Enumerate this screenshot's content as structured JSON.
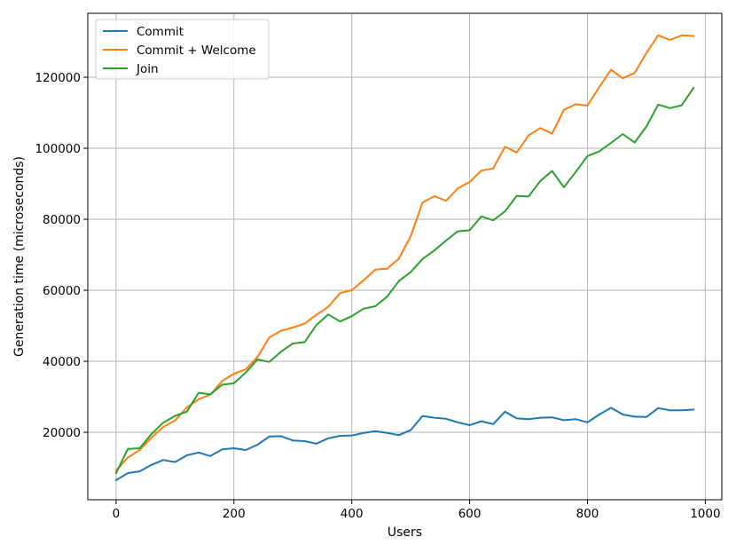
{
  "chart_data": {
    "type": "line",
    "xlabel": "Users",
    "ylabel": "Generation time (microseconds)",
    "xlim": [
      -48,
      1028
    ],
    "ylim": [
      1000,
      138000
    ],
    "xticks": [
      0,
      200,
      400,
      600,
      800,
      1000
    ],
    "yticks": [
      20000,
      40000,
      60000,
      80000,
      100000,
      120000
    ],
    "grid": true,
    "legend_position": "top-left",
    "x": [
      0,
      20,
      40,
      60,
      80,
      100,
      120,
      140,
      160,
      180,
      200,
      220,
      240,
      260,
      280,
      300,
      320,
      340,
      360,
      380,
      400,
      420,
      440,
      460,
      480,
      500,
      520,
      540,
      560,
      580,
      600,
      620,
      640,
      660,
      680,
      700,
      720,
      740,
      760,
      780,
      800,
      820,
      840,
      860,
      880,
      900,
      920,
      940,
      960,
      980
    ],
    "series": [
      {
        "name": "Commit",
        "color": "#1f77b4",
        "values": [
          6500,
          8500,
          9000,
          10800,
          12200,
          11600,
          13500,
          14300,
          13300,
          15200,
          15500,
          15000,
          16500,
          18800,
          18900,
          17700,
          17500,
          16800,
          18300,
          19000,
          19100,
          19800,
          20300,
          19800,
          19200,
          20600,
          24600,
          24100,
          23800,
          22800,
          22000,
          23100,
          22300,
          25800,
          23900,
          23700,
          24100,
          24200,
          23400,
          23700,
          22800,
          25000,
          26900,
          25000,
          24400,
          24300,
          26800,
          26200,
          26200,
          26400
        ]
      },
      {
        "name": "Commit + Welcome",
        "color": "#ff7f0e",
        "values": [
          9200,
          12900,
          15000,
          18500,
          21500,
          23300,
          27000,
          29300,
          30600,
          34400,
          36500,
          37700,
          41200,
          46700,
          48600,
          49500,
          50600,
          53100,
          55300,
          59200,
          60000,
          62800,
          65800,
          66100,
          68900,
          75200,
          84700,
          86500,
          85200,
          88700,
          90500,
          93700,
          94300,
          100400,
          98800,
          103600,
          105700,
          104100,
          110800,
          112400,
          112000,
          117200,
          122100,
          119700,
          121200,
          126800,
          131800,
          130500,
          131800,
          131600
        ]
      },
      {
        "name": "Join",
        "color": "#2ca02c",
        "values": [
          8500,
          15300,
          15500,
          19500,
          22700,
          24600,
          25800,
          31100,
          30700,
          33400,
          33800,
          36800,
          40500,
          39800,
          42700,
          45000,
          45400,
          50200,
          53200,
          51200,
          52700,
          54800,
          55500,
          58200,
          62600,
          65100,
          68800,
          71200,
          74000,
          76600,
          76900,
          80800,
          79700,
          82200,
          86600,
          86400,
          90800,
          93600,
          89000,
          93300,
          97800,
          99100,
          101500,
          104000,
          101600,
          106100,
          112300,
          111300,
          112100,
          117000
        ]
      }
    ]
  }
}
